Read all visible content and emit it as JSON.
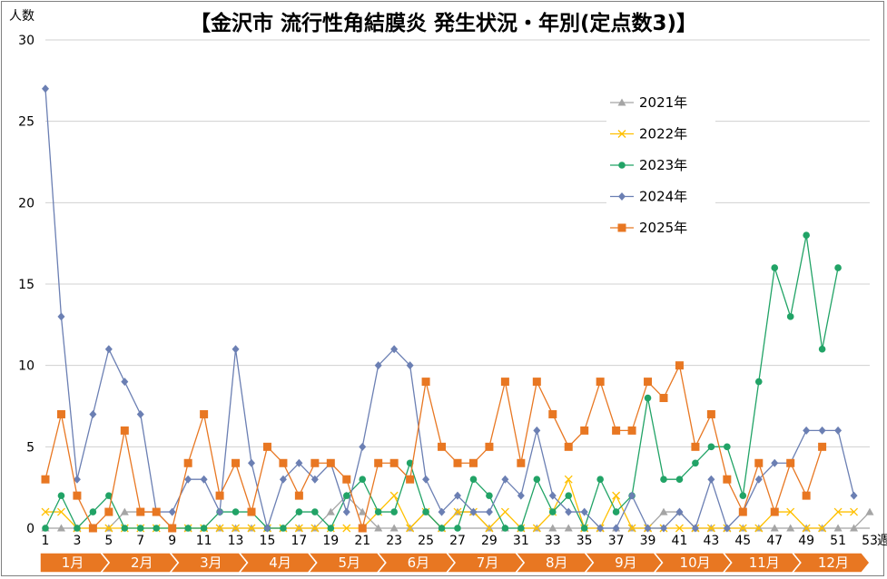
{
  "chart_data": {
    "type": "line",
    "title": "【金沢市 流行性角結膜炎 発生状況・年別(定点数3)】",
    "ylabel": "人数",
    "xlabel": "週",
    "ylim": [
      0,
      30
    ],
    "yticks": [
      0,
      5,
      10,
      15,
      20,
      25,
      30
    ],
    "xlim": [
      1,
      53
    ],
    "xtick_labels": [
      "1",
      "3",
      "5",
      "7",
      "9",
      "11",
      "13",
      "15",
      "17",
      "19",
      "21",
      "23",
      "25",
      "27",
      "29",
      "31",
      "33",
      "35",
      "37",
      "39",
      "41",
      "43",
      "45",
      "47",
      "49",
      "51",
      "53"
    ],
    "months": [
      "1月",
      "2月",
      "3月",
      "4月",
      "5月",
      "6月",
      "7月",
      "8月",
      "9月",
      "10月",
      "11月",
      "12月"
    ],
    "grid": "horizontal",
    "legend": "upper-right",
    "series": [
      {
        "name": "2021年",
        "color": "#a5a5a5",
        "marker": "triangle",
        "values": [
          0,
          0,
          0,
          0,
          0,
          1,
          1,
          1,
          0,
          0,
          0,
          0,
          0,
          0,
          0,
          0,
          0,
          0,
          1,
          2,
          1,
          0,
          0,
          0,
          1,
          0,
          1,
          1,
          0,
          0,
          0,
          0,
          0,
          0,
          0,
          0,
          0,
          0,
          0,
          1,
          1,
          0,
          0,
          0,
          0,
          0,
          0,
          0,
          0,
          0,
          0,
          0,
          1
        ]
      },
      {
        "name": "2022年",
        "color": "#ffc000",
        "marker": "x",
        "values": [
          1,
          1,
          0,
          0,
          0,
          0,
          0,
          0,
          0,
          0,
          0,
          0,
          0,
          0,
          0,
          0,
          0,
          0,
          0,
          0,
          0,
          1,
          2,
          0,
          1,
          0,
          1,
          1,
          0,
          1,
          0,
          0,
          1,
          3,
          0,
          0,
          2,
          0,
          0,
          0,
          0,
          0,
          0,
          0,
          0,
          0,
          1,
          1,
          0,
          0,
          1,
          1,
          null
        ]
      },
      {
        "name": "2023年",
        "color": "#21a366",
        "marker": "circle",
        "values": [
          0,
          2,
          0,
          1,
          2,
          0,
          0,
          0,
          0,
          0,
          0,
          1,
          1,
          1,
          0,
          0,
          1,
          1,
          0,
          2,
          3,
          1,
          1,
          4,
          1,
          0,
          0,
          3,
          2,
          0,
          0,
          3,
          1,
          2,
          0,
          3,
          1,
          2,
          8,
          3,
          3,
          4,
          5,
          5,
          2,
          9,
          16,
          13,
          18,
          11,
          16,
          null,
          null
        ]
      },
      {
        "name": "2024年",
        "color": "#6b7fb3",
        "marker": "diamond",
        "values": [
          27,
          13,
          3,
          7,
          11,
          9,
          7,
          1,
          1,
          3,
          3,
          1,
          11,
          4,
          0,
          3,
          4,
          3,
          4,
          1,
          5,
          10,
          11,
          10,
          3,
          1,
          2,
          1,
          1,
          3,
          2,
          6,
          2,
          1,
          1,
          0,
          0,
          2,
          0,
          0,
          1,
          0,
          3,
          0,
          1,
          3,
          4,
          4,
          6,
          6,
          6,
          2,
          null
        ]
      },
      {
        "name": "2025年",
        "color": "#e87722",
        "marker": "square",
        "values": [
          3,
          7,
          2,
          0,
          1,
          6,
          1,
          1,
          0,
          4,
          7,
          2,
          4,
          1,
          5,
          4,
          2,
          4,
          4,
          3,
          0,
          4,
          4,
          3,
          9,
          5,
          4,
          4,
          5,
          9,
          4,
          9,
          7,
          5,
          6,
          9,
          6,
          6,
          9,
          8,
          10,
          5,
          7,
          3,
          1,
          4,
          1,
          4,
          2,
          5,
          null,
          null,
          null
        ]
      }
    ]
  }
}
